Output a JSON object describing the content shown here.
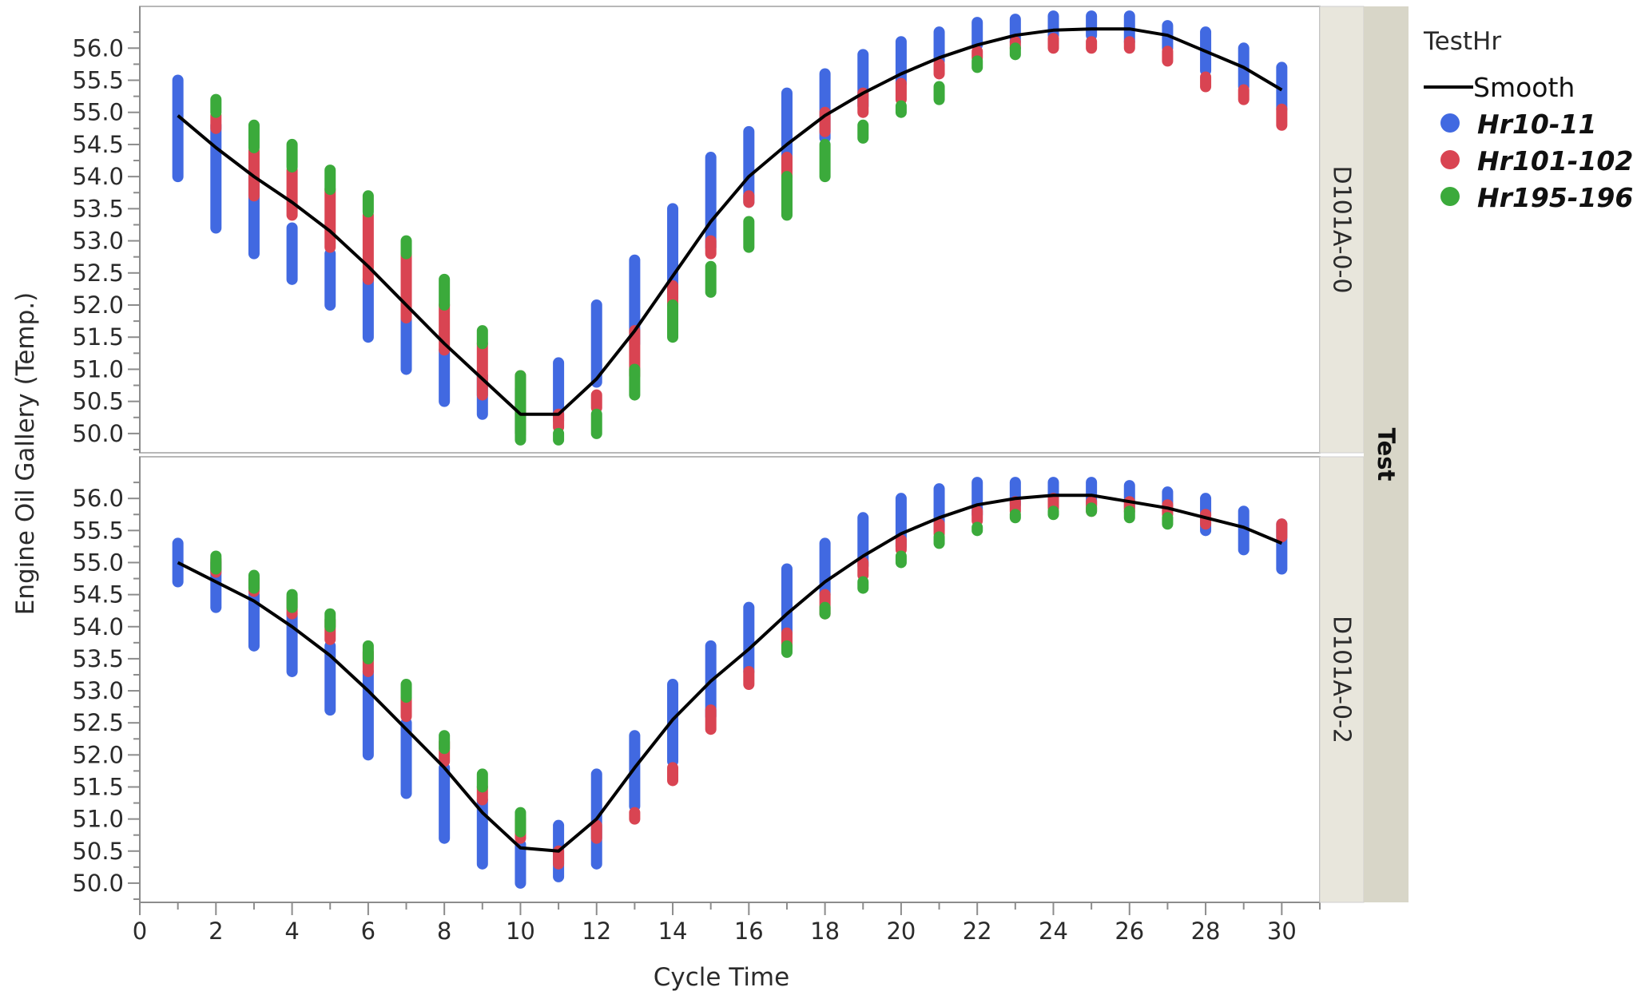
{
  "chart_data": {
    "type": "scatter",
    "xlabel": "Cycle Time",
    "ylabel": "Engine Oil Gallery (Temp.)",
    "xlim": [
      0,
      31
    ],
    "ylim": [
      49.7,
      56.65
    ],
    "x_ticks": [
      0,
      2,
      4,
      6,
      8,
      10,
      12,
      14,
      16,
      18,
      20,
      22,
      24,
      26,
      28,
      30
    ],
    "y_ticks": [
      50.0,
      50.5,
      51.0,
      51.5,
      52.0,
      52.5,
      53.0,
      53.5,
      54.0,
      54.5,
      55.0,
      55.5,
      56.0
    ],
    "group_label": "Test",
    "legend": {
      "title": "TestHr",
      "position": "right",
      "items": [
        {
          "label": "Smooth",
          "kind": "line",
          "color": "#000000"
        },
        {
          "label": "Hr10-11",
          "kind": "point",
          "color": "#4169E1"
        },
        {
          "label": "Hr101-102",
          "kind": "point",
          "color": "#D94452"
        },
        {
          "label": "Hr195-196",
          "kind": "point",
          "color": "#3BAA3B"
        }
      ]
    },
    "panels": [
      {
        "label": "D101A-0-0",
        "smooth": {
          "x": [
            1,
            2,
            3,
            4,
            5,
            6,
            7,
            8,
            9,
            10,
            11,
            12,
            13,
            14,
            15,
            16,
            17,
            18,
            19,
            20,
            21,
            22,
            23,
            24,
            25,
            26,
            27,
            28,
            29,
            30
          ],
          "y": [
            54.95,
            54.45,
            54.0,
            53.6,
            53.15,
            52.6,
            52.0,
            51.4,
            50.85,
            50.3,
            50.3,
            50.85,
            51.6,
            52.45,
            53.3,
            54.0,
            54.5,
            54.95,
            55.3,
            55.6,
            55.85,
            56.05,
            56.2,
            56.28,
            56.3,
            56.3,
            56.2,
            55.95,
            55.7,
            55.35
          ]
        },
        "series": [
          {
            "name": "Hr10-11",
            "x": [
              1,
              2,
              3,
              4,
              5,
              6,
              7,
              8,
              9,
              10,
              11,
              12,
              13,
              14,
              15,
              16,
              17,
              18,
              19,
              20,
              21,
              22,
              23,
              24,
              25,
              26,
              27,
              28,
              29,
              30
            ],
            "ymin": [
              54.0,
              53.2,
              52.8,
              52.4,
              52.0,
              51.5,
              51.0,
              50.5,
              50.3,
              50.0,
              50.2,
              50.8,
              51.4,
              52.1,
              52.9,
              53.6,
              54.1,
              54.6,
              55.1,
              55.45,
              55.8,
              56.05,
              56.1,
              56.2,
              56.2,
              56.1,
              56.0,
              55.65,
              55.4,
              55.05
            ],
            "ymax": [
              55.5,
              54.8,
              54.0,
              53.2,
              52.8,
              52.4,
              51.8,
              51.3,
              50.9,
              50.7,
              51.1,
              52.0,
              52.7,
              53.5,
              54.3,
              54.7,
              55.3,
              55.6,
              55.9,
              56.1,
              56.25,
              56.4,
              56.45,
              56.5,
              56.5,
              56.5,
              56.35,
              56.25,
              56.0,
              55.7
            ]
          },
          {
            "name": "Hr101-102",
            "x": [
              2,
              3,
              4,
              5,
              6,
              7,
              8,
              9,
              10,
              11,
              12,
              13,
              14,
              15,
              16,
              17,
              18,
              19,
              20,
              21,
              22,
              23,
              24,
              25,
              26,
              27,
              28,
              29,
              30
            ],
            "ymin": [
              54.75,
              53.7,
              53.4,
              52.9,
              52.4,
              51.8,
              51.3,
              50.6,
              50.0,
              50.1,
              50.4,
              50.9,
              52.0,
              52.8,
              53.6,
              54.0,
              54.7,
              55.0,
              55.2,
              55.6,
              55.85,
              56.0,
              56.0,
              56.0,
              56.0,
              55.8,
              55.4,
              55.2,
              54.8
            ],
            "ymax": [
              54.95,
              54.4,
              54.1,
              53.8,
              53.4,
              52.8,
              52.0,
              51.4,
              50.9,
              50.3,
              50.6,
              51.6,
              52.3,
              53.0,
              53.7,
              54.3,
              55.0,
              55.3,
              55.45,
              55.75,
              55.95,
              56.1,
              56.15,
              56.1,
              56.1,
              55.95,
              55.55,
              55.35,
              55.05
            ]
          },
          {
            "name": "Hr195-196",
            "x": [
              2,
              3,
              4,
              5,
              6,
              7,
              8,
              9,
              10,
              11,
              12,
              13,
              14,
              15,
              16,
              17,
              18,
              19,
              20,
              21,
              22,
              23
            ],
            "ymin": [
              55.0,
              54.45,
              54.15,
              53.8,
              53.45,
              52.8,
              52.0,
              51.4,
              49.9,
              49.9,
              50.0,
              50.6,
              51.5,
              52.2,
              52.9,
              53.4,
              54.0,
              54.6,
              55.0,
              55.2,
              55.7,
              55.9
            ],
            "ymax": [
              55.2,
              54.8,
              54.5,
              54.1,
              53.7,
              53.0,
              52.4,
              51.6,
              50.9,
              50.0,
              50.3,
              51.0,
              52.0,
              52.6,
              53.3,
              54.0,
              54.5,
              54.8,
              55.1,
              55.4,
              55.8,
              56.0
            ]
          }
        ]
      },
      {
        "label": "D101A-0-2",
        "smooth": {
          "x": [
            1,
            2,
            3,
            4,
            5,
            6,
            7,
            8,
            9,
            10,
            11,
            12,
            13,
            14,
            15,
            16,
            17,
            18,
            19,
            20,
            21,
            22,
            23,
            24,
            25,
            26,
            27,
            28,
            29,
            30
          ],
          "y": [
            55.0,
            54.7,
            54.4,
            54.0,
            53.55,
            53.0,
            52.4,
            51.8,
            51.1,
            50.55,
            50.5,
            51.0,
            51.8,
            52.55,
            53.15,
            53.65,
            54.2,
            54.7,
            55.1,
            55.45,
            55.7,
            55.9,
            56.0,
            56.05,
            56.05,
            55.95,
            55.85,
            55.7,
            55.55,
            55.3
          ]
        },
        "series": [
          {
            "name": "Hr10-11",
            "x": [
              1,
              2,
              3,
              4,
              5,
              6,
              7,
              8,
              9,
              10,
              11,
              12,
              13,
              14,
              15,
              16,
              17,
              18,
              19,
              20,
              21,
              22,
              23,
              24,
              25,
              26,
              27,
              28,
              29,
              30
            ],
            "ymin": [
              54.7,
              54.3,
              53.7,
              53.3,
              52.7,
              52.0,
              51.4,
              50.7,
              50.3,
              50.0,
              50.1,
              50.3,
              51.2,
              51.9,
              52.6,
              53.3,
              53.9,
              54.5,
              54.95,
              55.25,
              55.5,
              55.75,
              55.9,
              55.95,
              55.9,
              55.85,
              55.8,
              55.5,
              55.2,
              54.9
            ],
            "ymax": [
              55.3,
              55.0,
              54.5,
              54.2,
              53.7,
              53.3,
              52.5,
              51.8,
              51.3,
              50.6,
              50.9,
              51.7,
              52.3,
              53.1,
              53.7,
              54.3,
              54.9,
              55.3,
              55.7,
              56.0,
              56.15,
              56.25,
              56.25,
              56.25,
              56.25,
              56.2,
              56.1,
              56.0,
              55.8,
              55.6
            ]
          },
          {
            "name": "Hr101-102",
            "x": [
              2,
              3,
              4,
              5,
              6,
              7,
              8,
              9,
              10,
              11,
              12,
              13,
              14,
              15,
              16,
              17,
              18,
              19,
              20,
              21,
              22,
              23,
              24,
              25,
              26,
              27,
              28,
              30
            ],
            "ymin": [
              54.85,
              54.55,
              54.2,
              53.8,
              53.3,
              52.6,
              51.9,
              51.3,
              50.7,
              50.3,
              50.7,
              51.0,
              51.6,
              52.4,
              53.1,
              53.7,
              54.2,
              54.8,
              55.2,
              55.45,
              55.65,
              55.8,
              55.85,
              55.8,
              55.8,
              55.75,
              55.6,
              55.4
            ],
            "ymax": [
              55.05,
              54.75,
              54.45,
              54.1,
              53.6,
              52.9,
              52.2,
              51.5,
              51.0,
              50.5,
              50.9,
              51.1,
              51.8,
              52.7,
              53.3,
              53.9,
              54.5,
              55.0,
              55.35,
              55.6,
              55.8,
              55.95,
              56.0,
              55.95,
              55.95,
              55.9,
              55.75,
              55.6
            ]
          },
          {
            "name": "Hr195-196",
            "x": [
              2,
              3,
              4,
              5,
              6,
              7,
              8,
              9,
              10,
              17,
              18,
              19,
              20,
              21,
              22,
              23,
              24,
              25,
              26,
              27
            ],
            "ymin": [
              54.9,
              54.6,
              54.3,
              54.0,
              53.5,
              52.9,
              52.1,
              51.5,
              50.8,
              53.6,
              54.2,
              54.6,
              55.0,
              55.3,
              55.5,
              55.7,
              55.75,
              55.8,
              55.7,
              55.6
            ],
            "ymax": [
              55.1,
              54.8,
              54.5,
              54.2,
              53.7,
              53.1,
              52.3,
              51.7,
              51.1,
              53.7,
              54.3,
              54.7,
              55.1,
              55.4,
              55.55,
              55.75,
              55.8,
              55.85,
              55.8,
              55.7
            ]
          }
        ]
      }
    ]
  }
}
